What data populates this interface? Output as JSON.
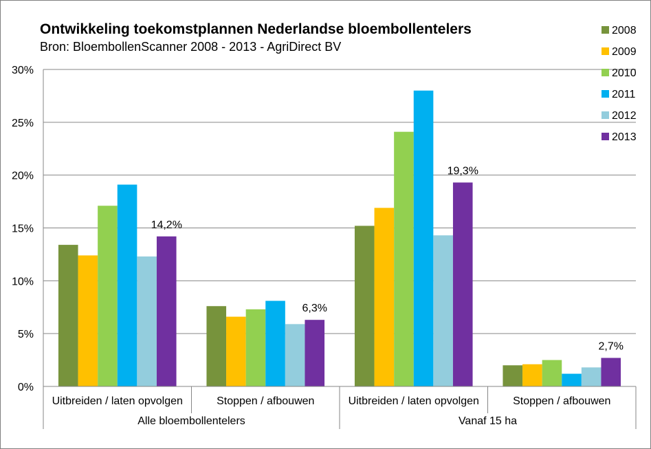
{
  "chart_data": {
    "type": "bar",
    "title": "Ontwikkeling toekomstplannen Nederlandse bloembollentelers",
    "subtitle": "Bron: BloembollenScanner 2008 - 2013 - AgriDirect BV",
    "categories": [
      "Uitbreiden / laten opvolgen",
      "Stoppen / afbouwen",
      "Uitbreiden / laten opvolgen",
      "Stoppen / afbouwen"
    ],
    "groups": [
      {
        "label": "Alle bloembollentelers",
        "span": [
          0,
          1
        ]
      },
      {
        "label": "Vanaf 15 ha",
        "span": [
          2,
          3
        ]
      }
    ],
    "series": [
      {
        "name": "2008",
        "color": "#77933c",
        "values": [
          13.4,
          7.6,
          15.2,
          2.0
        ]
      },
      {
        "name": "2009",
        "color": "#ffc000",
        "values": [
          12.4,
          6.6,
          16.9,
          2.1
        ]
      },
      {
        "name": "2010",
        "color": "#92d050",
        "values": [
          17.1,
          7.3,
          24.1,
          2.5
        ]
      },
      {
        "name": "2011",
        "color": "#00b0f0",
        "values": [
          19.1,
          8.1,
          28.0,
          1.2
        ]
      },
      {
        "name": "2012",
        "color": "#93cddd",
        "values": [
          12.3,
          5.9,
          14.3,
          1.8
        ]
      },
      {
        "name": "2013",
        "color": "#7030a0",
        "values": [
          14.2,
          6.3,
          19.3,
          2.7
        ]
      }
    ],
    "data_labels": {
      "series": "2013",
      "labels": [
        "14,2%",
        "6,3%",
        "19,3%",
        "2,7%"
      ]
    },
    "yticks": [
      "0%",
      "5%",
      "10%",
      "15%",
      "20%",
      "25%",
      "30%"
    ],
    "ylim": [
      0,
      30
    ],
    "ytick_step": 5,
    "grid": true,
    "legend_position": "right"
  }
}
